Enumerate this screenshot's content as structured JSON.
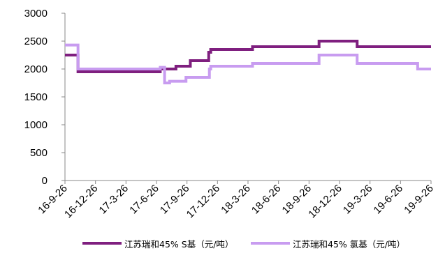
{
  "chart_data": {
    "type": "line",
    "title": "",
    "xlabel": "",
    "ylabel": "",
    "ylim": [
      0,
      3000
    ],
    "yticks": [
      0,
      500,
      1000,
      1500,
      2000,
      2500,
      3000
    ],
    "xticks": [
      "16-9-26",
      "16-12-26",
      "17-3-26",
      "17-6-26",
      "17-9-26",
      "17-12-26",
      "18-3-26",
      "18-6-26",
      "18-9-26",
      "18-12-26",
      "19-3-26",
      "19-6-26",
      "19-9-26"
    ],
    "x_range": [
      "2016-09-26",
      "2019-09-26"
    ],
    "step": true,
    "grid": false,
    "legend_position": "bottom",
    "series": [
      {
        "name": "江苏瑞和45% S基（元/吨）",
        "color": "#7f1f7f",
        "points": [
          [
            "2016-09-26",
            2250
          ],
          [
            "2016-11-04",
            1950
          ],
          [
            "2017-07-08",
            2000
          ],
          [
            "2017-08-24",
            2050
          ],
          [
            "2017-10-06",
            2150
          ],
          [
            "2017-11-30",
            2300
          ],
          [
            "2017-12-06",
            2350
          ],
          [
            "2018-04-10",
            2400
          ],
          [
            "2018-10-26",
            2500
          ],
          [
            "2019-02-17",
            2400
          ],
          [
            "2019-09-26",
            2400
          ]
        ]
      },
      {
        "name": "江苏瑞和45% 氯基（元/吨）",
        "color": "#c89cf0",
        "points": [
          [
            "2016-09-26",
            2430
          ],
          [
            "2016-11-04",
            2000
          ],
          [
            "2017-07-08",
            2030
          ],
          [
            "2017-07-21",
            1750
          ],
          [
            "2017-08-05",
            1780
          ],
          [
            "2017-09-23",
            1850
          ],
          [
            "2017-12-02",
            2000
          ],
          [
            "2017-12-06",
            2050
          ],
          [
            "2018-04-10",
            2100
          ],
          [
            "2018-10-26",
            2250
          ],
          [
            "2019-02-17",
            2100
          ],
          [
            "2019-08-17",
            2000
          ],
          [
            "2019-09-26",
            2000
          ]
        ]
      }
    ]
  }
}
